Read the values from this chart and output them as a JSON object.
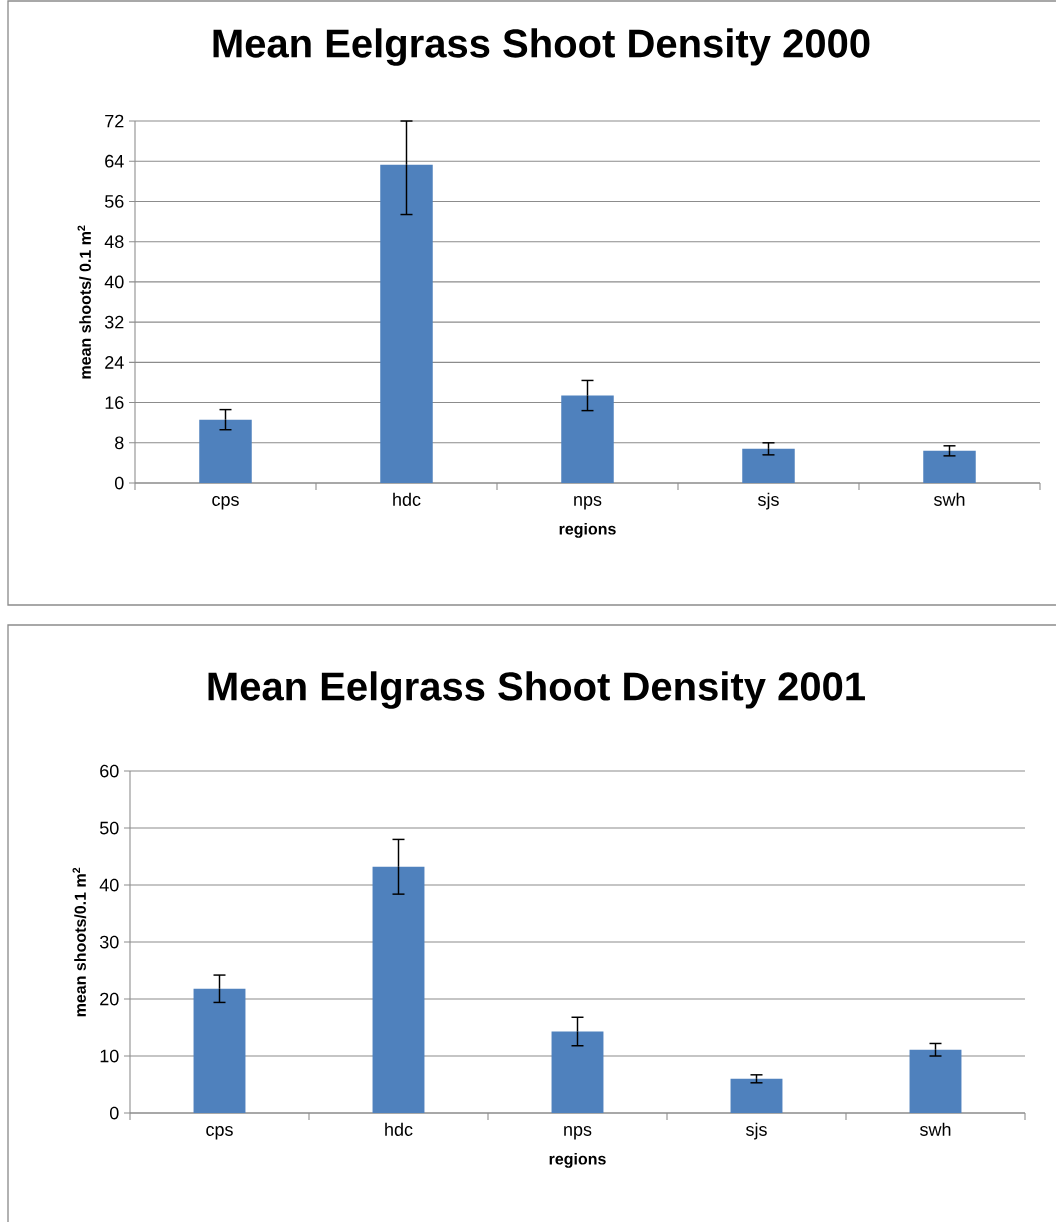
{
  "chart_data": [
    {
      "type": "bar",
      "title": "Mean Eelgrass Shoot Density 2000",
      "xlabel": "regions",
      "ylabel": "mean shoots/ 0.1 m$^{2}$",
      "categories": [
        "cps",
        "hdc",
        "nps",
        "sjs",
        "swh"
      ],
      "values": [
        12.6,
        63.3,
        17.4,
        6.8,
        6.4
      ],
      "errors": [
        2.0,
        [
          53.4,
          72
        ],
        3.0,
        1.2,
        1.0
      ],
      "color": "#4f81bd",
      "ylim": [
        0,
        72
      ],
      "yticks": [
        0,
        8,
        16,
        24,
        32,
        40,
        48,
        56,
        64,
        72
      ],
      "grid": "y"
    },
    {
      "type": "bar",
      "title": "Mean Eelgrass Shoot Density 2001",
      "xlabel": "regions",
      "ylabel": "mean shoots/0.1 m$^{2}$",
      "categories": [
        "cps",
        "hdc",
        "nps",
        "sjs",
        "swh"
      ],
      "values": [
        21.8,
        43.2,
        14.3,
        6.0,
        11.1
      ],
      "errors": [
        2.4,
        4.8,
        2.5,
        0.7,
        1.1
      ],
      "color": "#4f81bd",
      "ylim": [
        0,
        60
      ],
      "yticks": [
        0,
        10,
        20,
        30,
        40,
        50,
        60
      ],
      "grid": "y"
    }
  ]
}
